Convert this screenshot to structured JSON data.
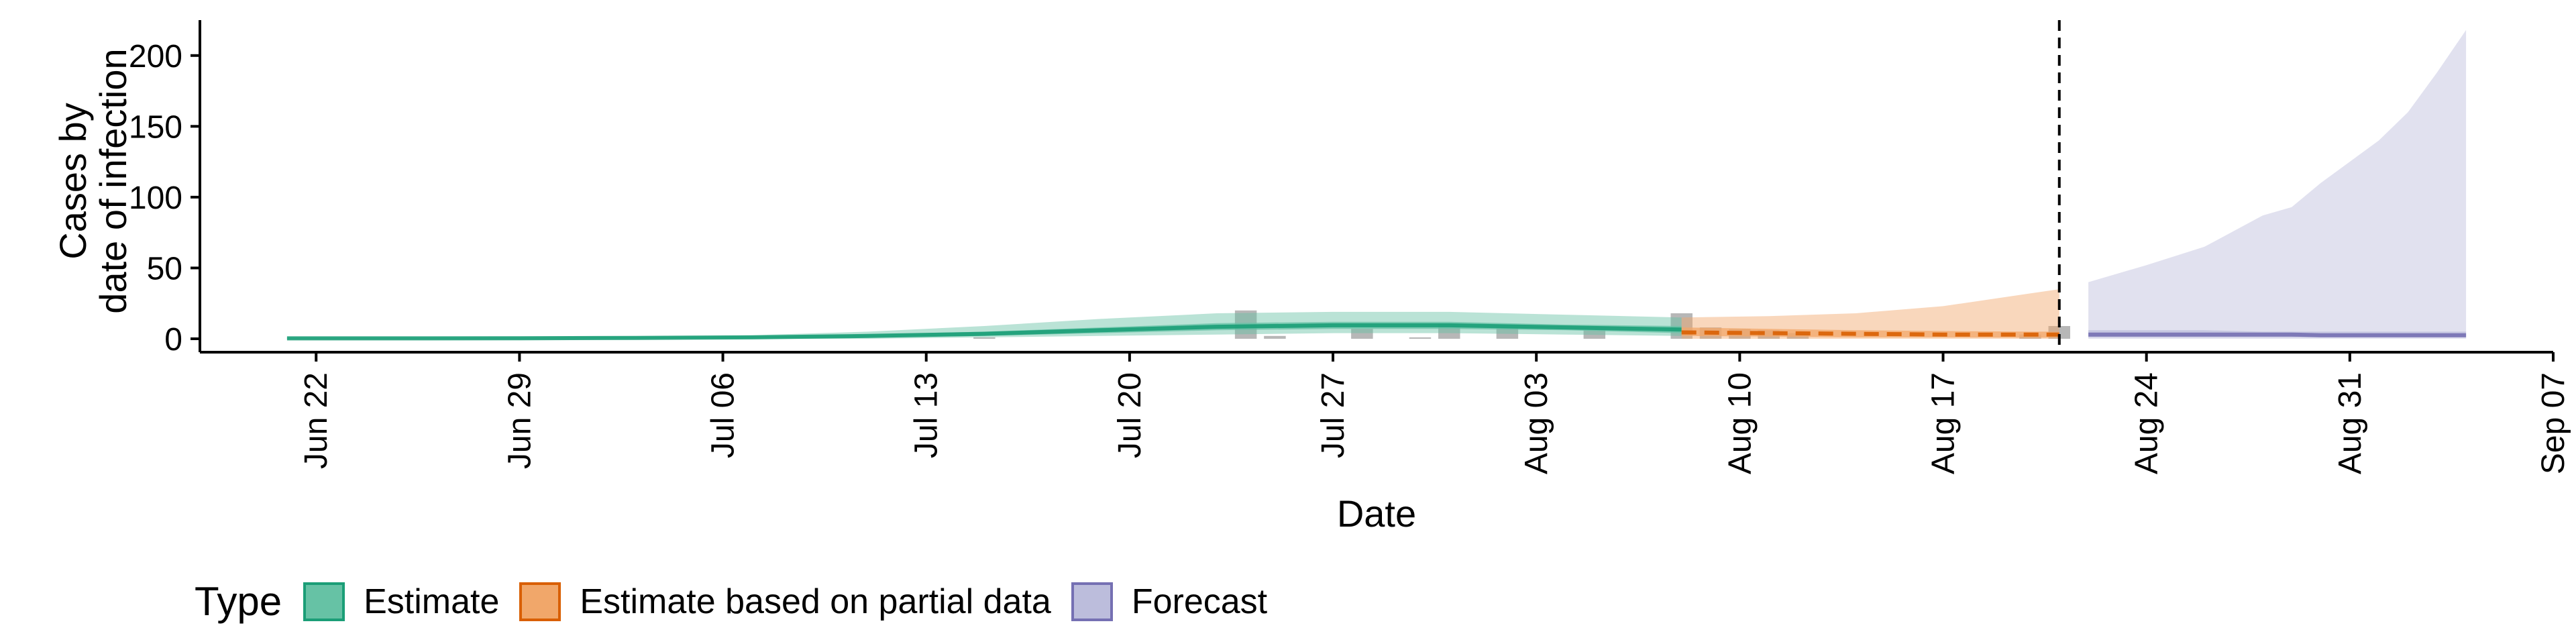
{
  "chart_data": {
    "type": "area",
    "xlabel": "Date",
    "ylabel_lines": [
      "Cases by",
      "date of infection"
    ],
    "ylim": [
      0,
      225
    ],
    "yticks": [
      0,
      50,
      100,
      150,
      200
    ],
    "xlim": [
      "2020-06-18",
      "2020-09-07"
    ],
    "xticks": [
      {
        "date": "2020-06-22",
        "label": "Jun 22"
      },
      {
        "date": "2020-06-29",
        "label": "Jun 29"
      },
      {
        "date": "2020-07-06",
        "label": "Jul 06"
      },
      {
        "date": "2020-07-13",
        "label": "Jul 13"
      },
      {
        "date": "2020-07-20",
        "label": "Jul 20"
      },
      {
        "date": "2020-07-27",
        "label": "Jul 27"
      },
      {
        "date": "2020-08-03",
        "label": "Aug 03"
      },
      {
        "date": "2020-08-10",
        "label": "Aug 10"
      },
      {
        "date": "2020-08-17",
        "label": "Aug 17"
      },
      {
        "date": "2020-08-24",
        "label": "Aug 24"
      },
      {
        "date": "2020-08-31",
        "label": "Aug 31"
      },
      {
        "date": "2020-09-07",
        "label": "Sep 07"
      }
    ],
    "forecast_start_line": "2020-08-21",
    "legend_title": "Type",
    "series": [
      {
        "name": "Estimate",
        "color": "#1b9e77",
        "fill": "#66c2a5",
        "x": [
          "2020-06-21",
          "2020-06-25",
          "2020-06-29",
          "2020-07-03",
          "2020-07-07",
          "2020-07-11",
          "2020-07-15",
          "2020-07-19",
          "2020-07-23",
          "2020-07-27",
          "2020-07-31",
          "2020-08-04",
          "2020-08-08"
        ],
        "upper": [
          1,
          1,
          1,
          1.5,
          2.5,
          5,
          9,
          14,
          18,
          19,
          19,
          17,
          15
        ],
        "lower": [
          0,
          0,
          0,
          0,
          0,
          0,
          1,
          2,
          3,
          4,
          4,
          3,
          2
        ],
        "mid_upper": [
          0.5,
          0.5,
          0.6,
          1,
          1.5,
          3,
          5,
          8,
          11,
          12,
          12,
          10,
          9
        ],
        "mid_lower": [
          0,
          0,
          0,
          0.2,
          0.5,
          1,
          2,
          4,
          6,
          7,
          7,
          6,
          4
        ],
        "median": [
          0.3,
          0.3,
          0.4,
          0.6,
          1,
          2,
          3.5,
          6,
          8.5,
          9.5,
          9.5,
          8,
          6.5
        ]
      },
      {
        "name": "Estimate based on partial data",
        "color": "#d95f02",
        "fill": "#f1a76a",
        "x": [
          "2020-08-08",
          "2020-08-11",
          "2020-08-14",
          "2020-08-17",
          "2020-08-20",
          "2020-08-21"
        ],
        "upper": [
          15,
          16,
          18,
          23,
          32,
          35
        ],
        "lower": [
          0,
          0,
          0,
          0,
          0,
          0
        ],
        "mid_upper": [
          8,
          7,
          6,
          5.5,
          5,
          5
        ],
        "mid_lower": [
          2,
          1.5,
          1,
          1,
          0.8,
          0.8
        ],
        "median": [
          4.5,
          4,
          3.5,
          3,
          3,
          3
        ]
      },
      {
        "name": "Forecast",
        "color": "#7570b3",
        "fill": "#bcbddc",
        "x": [
          "2020-08-22",
          "2020-08-24",
          "2020-08-26",
          "2020-08-28",
          "2020-08-29",
          "2020-08-30",
          "2020-09-01",
          "2020-09-02",
          "2020-09-03",
          "2020-09-04"
        ],
        "upper": [
          40,
          52,
          65,
          87,
          93,
          110,
          140,
          160,
          188,
          218
        ],
        "lower": [
          0,
          0,
          0,
          0,
          0,
          0,
          0,
          0,
          0,
          0
        ],
        "mid_upper": [
          6,
          6,
          6,
          5,
          5,
          5,
          5,
          5,
          5,
          5
        ],
        "mid_lower": [
          1,
          1,
          1,
          1,
          1,
          1,
          1,
          1,
          1,
          1
        ],
        "median": [
          3,
          3,
          3,
          3,
          3,
          2.5,
          2.5,
          2.5,
          2.5,
          2.5
        ]
      }
    ],
    "reported_cases": {
      "color": "#999999",
      "x": [
        "2020-07-15",
        "2020-07-24",
        "2020-07-25",
        "2020-07-28",
        "2020-07-30",
        "2020-07-31",
        "2020-08-02",
        "2020-08-05",
        "2020-08-08",
        "2020-08-09",
        "2020-08-10",
        "2020-08-11",
        "2020-08-12",
        "2020-08-20",
        "2020-08-21"
      ],
      "values": [
        1,
        20,
        2,
        7,
        1,
        10,
        8,
        6,
        18,
        8,
        7,
        6,
        4,
        3,
        9
      ]
    }
  }
}
